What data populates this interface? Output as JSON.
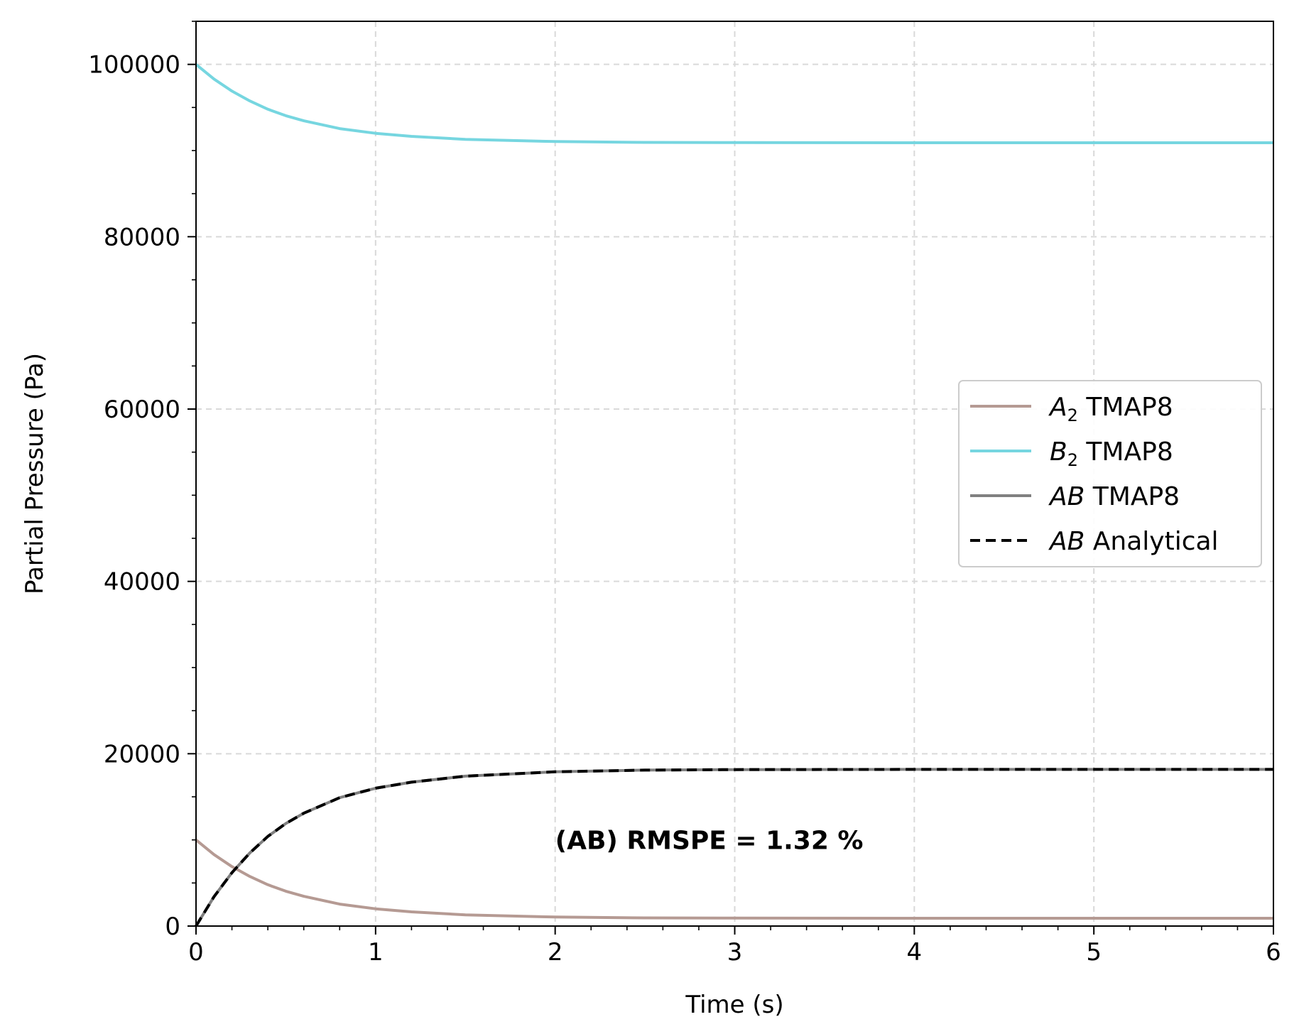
{
  "chart_data": {
    "type": "line",
    "xlabel": "Time (s)",
    "ylabel": "Partial Pressure (Pa)",
    "xlim": [
      0,
      6
    ],
    "ylim": [
      0,
      105000
    ],
    "x_ticks": [
      0,
      1,
      2,
      3,
      4,
      5,
      6
    ],
    "y_ticks": [
      0,
      20000,
      40000,
      60000,
      80000,
      100000
    ],
    "grid": true,
    "legend_position": "right",
    "annotation": {
      "text": "(AB) RMSPE = 1.32 %",
      "x": 2.0,
      "y": 10000
    },
    "series": [
      {
        "label_main": "A",
        "label_sub": "2",
        "label_rest": " TMAP8",
        "color": "#b59a93",
        "style": "solid",
        "x": [
          0,
          0.1,
          0.2,
          0.3,
          0.4,
          0.5,
          0.6,
          0.8,
          1.0,
          1.2,
          1.5,
          2.0,
          2.5,
          3.0,
          4.0,
          5.0,
          6.0
        ],
        "y": [
          10000,
          8300,
          6900,
          5750,
          4800,
          4050,
          3450,
          2550,
          2000,
          1650,
          1300,
          1050,
          950,
          920,
          910,
          910,
          910
        ]
      },
      {
        "label_main": "B",
        "label_sub": "2",
        "label_rest": " TMAP8",
        "color": "#76d6e0",
        "style": "solid",
        "x": [
          0,
          0.1,
          0.2,
          0.3,
          0.4,
          0.5,
          0.6,
          0.8,
          1.0,
          1.2,
          1.5,
          2.0,
          2.5,
          3.0,
          4.0,
          5.0,
          6.0
        ],
        "y": [
          100000,
          98300,
          96900,
          95750,
          94800,
          94050,
          93450,
          92550,
          92000,
          91650,
          91300,
          91050,
          90950,
          90920,
          90910,
          90910,
          90910
        ]
      },
      {
        "label_main": "AB",
        "label_sub": "",
        "label_rest": " TMAP8",
        "color": "#808080",
        "style": "solid",
        "x": [
          0,
          0.1,
          0.2,
          0.3,
          0.4,
          0.5,
          0.6,
          0.8,
          1.0,
          1.2,
          1.5,
          2.0,
          2.5,
          3.0,
          4.0,
          5.0,
          6.0
        ],
        "y": [
          0,
          3400,
          6200,
          8500,
          10400,
          11900,
          13100,
          14900,
          16000,
          16700,
          17400,
          17900,
          18100,
          18160,
          18180,
          18180,
          18180
        ]
      },
      {
        "label_main": "AB",
        "label_sub": "",
        "label_rest": " Analytical",
        "color": "#000000",
        "style": "dashed",
        "x": [
          0,
          0.1,
          0.2,
          0.3,
          0.4,
          0.5,
          0.6,
          0.8,
          1.0,
          1.2,
          1.5,
          2.0,
          2.5,
          3.0,
          4.0,
          5.0,
          6.0
        ],
        "y": [
          0,
          3400,
          6200,
          8500,
          10400,
          11900,
          13100,
          14900,
          16000,
          16700,
          17400,
          17900,
          18100,
          18160,
          18180,
          18180,
          18180
        ]
      }
    ]
  }
}
